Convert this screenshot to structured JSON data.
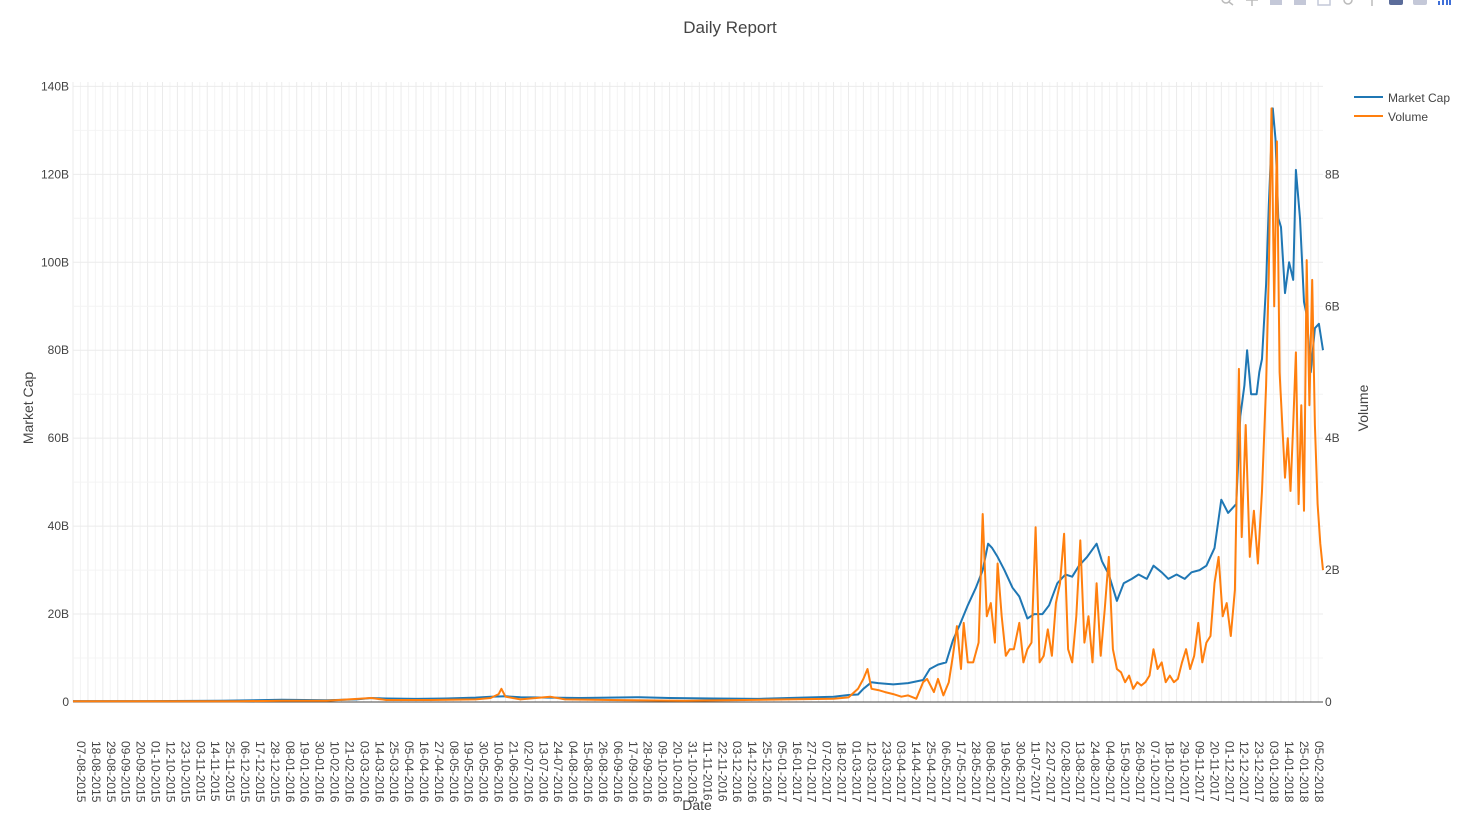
{
  "chart_data": {
    "type": "line",
    "title": "Daily Report",
    "xlabel": "Date",
    "ylabel": "Market Cap",
    "y2label": "Volume",
    "x_start": "07-08-2015",
    "x_end": "14-02-2018",
    "x_tick_step_days": 11,
    "x_tick_labels": [
      "07-08-2015",
      "18-08-2015",
      "29-08-2015",
      "09-09-2015",
      "20-09-2015",
      "01-10-2015",
      "12-10-2015",
      "23-10-2015",
      "03-11-2015",
      "14-11-2015",
      "25-11-2015",
      "06-12-2015",
      "17-12-2015",
      "28-12-2015",
      "08-01-2016",
      "19-01-2016",
      "30-01-2016",
      "10-02-2016",
      "21-02-2016",
      "03-03-2016",
      "14-03-2016",
      "25-03-2016",
      "05-04-2016",
      "16-04-2016",
      "27-04-2016",
      "08-05-2016",
      "19-05-2016",
      "30-05-2016",
      "10-06-2016",
      "21-06-2016",
      "02-07-2016",
      "13-07-2016",
      "24-07-2016",
      "04-08-2016",
      "15-08-2016",
      "26-08-2016",
      "06-09-2016",
      "17-09-2016",
      "28-09-2016",
      "09-10-2016",
      "20-10-2016",
      "31-10-2016",
      "11-11-2016",
      "22-11-2016",
      "03-12-2016",
      "14-12-2016",
      "25-12-2016",
      "05-01-2017",
      "16-01-2017",
      "27-01-2017",
      "07-02-2017",
      "18-02-2017",
      "01-03-2017",
      "12-03-2017",
      "23-03-2017",
      "03-04-2017",
      "14-04-2017",
      "25-04-2017",
      "06-05-2017",
      "17-05-2017",
      "28-05-2017",
      "08-06-2017",
      "19-06-2017",
      "30-06-2017",
      "11-07-2017",
      "22-07-2017",
      "02-08-2017",
      "13-08-2017",
      "24-08-2017",
      "04-09-2017",
      "15-09-2017",
      "26-09-2017",
      "07-10-2017",
      "18-10-2017",
      "29-10-2017",
      "09-11-2017",
      "20-11-2017",
      "01-12-2017",
      "12-12-2017",
      "23-12-2017",
      "03-01-2018",
      "14-01-2018",
      "25-01-2018",
      "05-02-2018"
    ],
    "y_ticks": [
      "0",
      "20B",
      "40B",
      "60B",
      "80B",
      "100B",
      "120B",
      "140B"
    ],
    "y2_ticks": [
      "0",
      "2B",
      "4B",
      "6B",
      "8B"
    ],
    "ylim": [
      0,
      141
    ],
    "y2lim": [
      0,
      9.4
    ],
    "unit": "B",
    "grid": true,
    "legend_position": "top-right",
    "series": [
      {
        "name": "Market Cap",
        "axis": "y",
        "color": "#1f77b4",
        "points": [
          [
            "07-08-2015",
            0.2
          ],
          [
            "01-10-2015",
            0.2
          ],
          [
            "25-11-2015",
            0.3
          ],
          [
            "08-01-2016",
            0.5
          ],
          [
            "10-02-2016",
            0.4
          ],
          [
            "03-03-2016",
            0.6
          ],
          [
            "14-03-2016",
            0.9
          ],
          [
            "25-03-2016",
            0.8
          ],
          [
            "16-04-2016",
            0.7
          ],
          [
            "08-05-2016",
            0.8
          ],
          [
            "30-05-2016",
            1.0
          ],
          [
            "10-06-2016",
            1.2
          ],
          [
            "21-06-2016",
            1.3
          ],
          [
            "02-07-2016",
            1.1
          ],
          [
            "24-07-2016",
            1.0
          ],
          [
            "15-08-2016",
            0.9
          ],
          [
            "28-09-2016",
            1.1
          ],
          [
            "20-10-2016",
            0.9
          ],
          [
            "22-11-2016",
            0.8
          ],
          [
            "25-12-2016",
            0.7
          ],
          [
            "16-01-2017",
            0.9
          ],
          [
            "18-02-2017",
            1.2
          ],
          [
            "01-03-2017",
            1.6
          ],
          [
            "08-03-2017",
            1.7
          ],
          [
            "12-03-2017",
            3.0
          ],
          [
            "18-03-2017",
            4.5
          ],
          [
            "23-03-2017",
            4.3
          ],
          [
            "03-04-2017",
            4.0
          ],
          [
            "14-04-2017",
            4.3
          ],
          [
            "25-04-2017",
            5.0
          ],
          [
            "30-04-2017",
            7.5
          ],
          [
            "06-05-2017",
            8.5
          ],
          [
            "12-05-2017",
            9.0
          ],
          [
            "17-05-2017",
            14.0
          ],
          [
            "22-05-2017",
            17.5
          ],
          [
            "28-05-2017",
            22.0
          ],
          [
            "03-06-2017",
            26.0
          ],
          [
            "08-06-2017",
            30.0
          ],
          [
            "12-06-2017",
            36.0
          ],
          [
            "15-06-2017",
            35.0
          ],
          [
            "19-06-2017",
            33.0
          ],
          [
            "24-06-2017",
            30.0
          ],
          [
            "30-06-2017",
            26.0
          ],
          [
            "05-07-2017",
            24.0
          ],
          [
            "11-07-2017",
            19.0
          ],
          [
            "16-07-2017",
            20.0
          ],
          [
            "22-07-2017",
            20.0
          ],
          [
            "27-07-2017",
            22.0
          ],
          [
            "02-08-2017",
            27.0
          ],
          [
            "08-08-2017",
            29.0
          ],
          [
            "13-08-2017",
            28.5
          ],
          [
            "18-08-2017",
            31.0
          ],
          [
            "24-08-2017",
            33.0
          ],
          [
            "31-08-2017",
            36.0
          ],
          [
            "04-09-2017",
            32.0
          ],
          [
            "09-09-2017",
            29.0
          ],
          [
            "15-09-2017",
            23.0
          ],
          [
            "20-09-2017",
            27.0
          ],
          [
            "26-09-2017",
            28.0
          ],
          [
            "01-10-2017",
            29.0
          ],
          [
            "07-10-2017",
            28.0
          ],
          [
            "12-10-2017",
            31.0
          ],
          [
            "18-10-2017",
            29.5
          ],
          [
            "23-10-2017",
            28.0
          ],
          [
            "29-10-2017",
            29.0
          ],
          [
            "04-11-2017",
            28.0
          ],
          [
            "09-11-2017",
            29.5
          ],
          [
            "15-11-2017",
            30.0
          ],
          [
            "20-11-2017",
            31.0
          ],
          [
            "26-11-2017",
            35.0
          ],
          [
            "01-12-2017",
            46.0
          ],
          [
            "06-12-2017",
            43.0
          ],
          [
            "12-12-2017",
            45.0
          ],
          [
            "15-12-2017",
            65.0
          ],
          [
            "18-12-2017",
            72.0
          ],
          [
            "20-12-2017",
            80.0
          ],
          [
            "23-12-2017",
            70.0
          ],
          [
            "27-12-2017",
            70.0
          ],
          [
            "29-12-2017",
            75.0
          ],
          [
            "31-12-2017",
            78.0
          ],
          [
            "03-01-2018",
            95.0
          ],
          [
            "05-01-2018",
            113.0
          ],
          [
            "08-01-2018",
            135.0
          ],
          [
            "10-01-2018",
            128.0
          ],
          [
            "12-01-2018",
            110.0
          ],
          [
            "14-01-2018",
            108.0
          ],
          [
            "17-01-2018",
            93.0
          ],
          [
            "20-01-2018",
            100.0
          ],
          [
            "23-01-2018",
            96.0
          ],
          [
            "25-01-2018",
            121.0
          ],
          [
            "28-01-2018",
            110.0
          ],
          [
            "31-01-2018",
            91.0
          ],
          [
            "02-02-2018",
            88.0
          ],
          [
            "05-02-2018",
            75.0
          ],
          [
            "08-02-2018",
            85.0
          ],
          [
            "11-02-2018",
            86.0
          ],
          [
            "14-02-2018",
            80.0
          ]
        ]
      },
      {
        "name": "Volume",
        "axis": "y2",
        "color": "#ff7f0e",
        "points": [
          [
            "07-08-2015",
            0.01
          ],
          [
            "29-08-2015",
            0.01
          ],
          [
            "03-11-2015",
            0.01
          ],
          [
            "06-12-2015",
            0.01
          ],
          [
            "08-01-2016",
            0.02
          ],
          [
            "10-02-2016",
            0.02
          ],
          [
            "14-03-2016",
            0.06
          ],
          [
            "25-03-2016",
            0.03
          ],
          [
            "27-04-2016",
            0.03
          ],
          [
            "30-05-2016",
            0.04
          ],
          [
            "10-06-2016",
            0.06
          ],
          [
            "16-06-2016",
            0.12
          ],
          [
            "18-06-2016",
            0.2
          ],
          [
            "21-06-2016",
            0.08
          ],
          [
            "02-07-2016",
            0.04
          ],
          [
            "24-07-2016",
            0.08
          ],
          [
            "04-08-2016",
            0.04
          ],
          [
            "06-09-2016",
            0.03
          ],
          [
            "31-10-2016",
            0.02
          ],
          [
            "14-12-2016",
            0.03
          ],
          [
            "16-01-2017",
            0.04
          ],
          [
            "18-02-2017",
            0.05
          ],
          [
            "01-03-2017",
            0.07
          ],
          [
            "08-03-2017",
            0.2
          ],
          [
            "12-03-2017",
            0.35
          ],
          [
            "15-03-2017",
            0.5
          ],
          [
            "18-03-2017",
            0.2
          ],
          [
            "23-03-2017",
            0.18
          ],
          [
            "28-03-2017",
            0.15
          ],
          [
            "03-04-2017",
            0.12
          ],
          [
            "09-04-2017",
            0.08
          ],
          [
            "14-04-2017",
            0.1
          ],
          [
            "20-04-2017",
            0.05
          ],
          [
            "25-04-2017",
            0.3
          ],
          [
            "28-04-2017",
            0.35
          ],
          [
            "03-05-2017",
            0.15
          ],
          [
            "06-05-2017",
            0.35
          ],
          [
            "10-05-2017",
            0.1
          ],
          [
            "14-05-2017",
            0.3
          ],
          [
            "17-05-2017",
            0.7
          ],
          [
            "20-05-2017",
            1.15
          ],
          [
            "23-05-2017",
            0.5
          ],
          [
            "25-05-2017",
            1.2
          ],
          [
            "28-05-2017",
            0.6
          ],
          [
            "01-06-2017",
            0.6
          ],
          [
            "05-06-2017",
            0.9
          ],
          [
            "08-06-2017",
            2.85
          ],
          [
            "11-06-2017",
            1.3
          ],
          [
            "14-06-2017",
            1.5
          ],
          [
            "17-06-2017",
            0.9
          ],
          [
            "19-06-2017",
            2.1
          ],
          [
            "22-06-2017",
            1.3
          ],
          [
            "25-06-2017",
            0.7
          ],
          [
            "28-06-2017",
            0.8
          ],
          [
            "01-07-2017",
            0.8
          ],
          [
            "05-07-2017",
            1.2
          ],
          [
            "08-07-2017",
            0.6
          ],
          [
            "11-07-2017",
            0.8
          ],
          [
            "14-07-2017",
            0.9
          ],
          [
            "17-07-2017",
            2.65
          ],
          [
            "20-07-2017",
            0.6
          ],
          [
            "23-07-2017",
            0.7
          ],
          [
            "26-07-2017",
            1.1
          ],
          [
            "29-07-2017",
            0.7
          ],
          [
            "01-08-2017",
            1.5
          ],
          [
            "04-08-2017",
            1.8
          ],
          [
            "07-08-2017",
            2.55
          ],
          [
            "10-08-2017",
            0.8
          ],
          [
            "13-08-2017",
            0.6
          ],
          [
            "16-08-2017",
            1.3
          ],
          [
            "19-08-2017",
            2.45
          ],
          [
            "22-08-2017",
            0.9
          ],
          [
            "25-08-2017",
            1.3
          ],
          [
            "28-08-2017",
            0.6
          ],
          [
            "31-08-2017",
            1.8
          ],
          [
            "03-09-2017",
            0.7
          ],
          [
            "06-09-2017",
            1.4
          ],
          [
            "09-09-2017",
            2.2
          ],
          [
            "12-09-2017",
            0.8
          ],
          [
            "15-09-2017",
            0.5
          ],
          [
            "18-09-2017",
            0.45
          ],
          [
            "21-09-2017",
            0.3
          ],
          [
            "24-09-2017",
            0.4
          ],
          [
            "27-09-2017",
            0.2
          ],
          [
            "30-09-2017",
            0.3
          ],
          [
            "03-10-2017",
            0.25
          ],
          [
            "06-10-2017",
            0.3
          ],
          [
            "09-10-2017",
            0.4
          ],
          [
            "12-10-2017",
            0.8
          ],
          [
            "15-10-2017",
            0.5
          ],
          [
            "18-10-2017",
            0.6
          ],
          [
            "21-10-2017",
            0.3
          ],
          [
            "24-10-2017",
            0.4
          ],
          [
            "27-10-2017",
            0.3
          ],
          [
            "30-10-2017",
            0.35
          ],
          [
            "02-11-2017",
            0.6
          ],
          [
            "05-11-2017",
            0.8
          ],
          [
            "08-11-2017",
            0.5
          ],
          [
            "11-11-2017",
            0.7
          ],
          [
            "14-11-2017",
            1.2
          ],
          [
            "17-11-2017",
            0.6
          ],
          [
            "20-11-2017",
            0.9
          ],
          [
            "23-11-2017",
            1.0
          ],
          [
            "26-11-2017",
            1.8
          ],
          [
            "29-11-2017",
            2.2
          ],
          [
            "02-12-2017",
            1.3
          ],
          [
            "05-12-2017",
            1.5
          ],
          [
            "08-12-2017",
            1.0
          ],
          [
            "11-12-2017",
            1.7
          ],
          [
            "14-12-2017",
            5.05
          ],
          [
            "16-12-2017",
            2.5
          ],
          [
            "19-12-2017",
            4.2
          ],
          [
            "22-12-2017",
            2.2
          ],
          [
            "25-12-2017",
            2.9
          ],
          [
            "28-12-2017",
            2.1
          ],
          [
            "31-12-2017",
            3.2
          ],
          [
            "03-01-2018",
            4.8
          ],
          [
            "05-01-2018",
            6.5
          ],
          [
            "07-01-2018",
            9.0
          ],
          [
            "09-01-2018",
            6.0
          ],
          [
            "11-01-2018",
            8.5
          ],
          [
            "13-01-2018",
            5.0
          ],
          [
            "15-01-2018",
            4.2
          ],
          [
            "17-01-2018",
            3.4
          ],
          [
            "19-01-2018",
            4.0
          ],
          [
            "21-01-2018",
            3.2
          ],
          [
            "23-01-2018",
            4.2
          ],
          [
            "25-01-2018",
            5.3
          ],
          [
            "27-01-2018",
            3.0
          ],
          [
            "29-01-2018",
            4.5
          ],
          [
            "31-01-2018",
            2.9
          ],
          [
            "02-02-2018",
            6.7
          ],
          [
            "04-02-2018",
            4.5
          ],
          [
            "06-02-2018",
            6.4
          ],
          [
            "08-02-2018",
            4.2
          ],
          [
            "10-02-2018",
            3.0
          ],
          [
            "12-02-2018",
            2.4
          ],
          [
            "14-02-2018",
            2.0
          ]
        ]
      }
    ]
  }
}
